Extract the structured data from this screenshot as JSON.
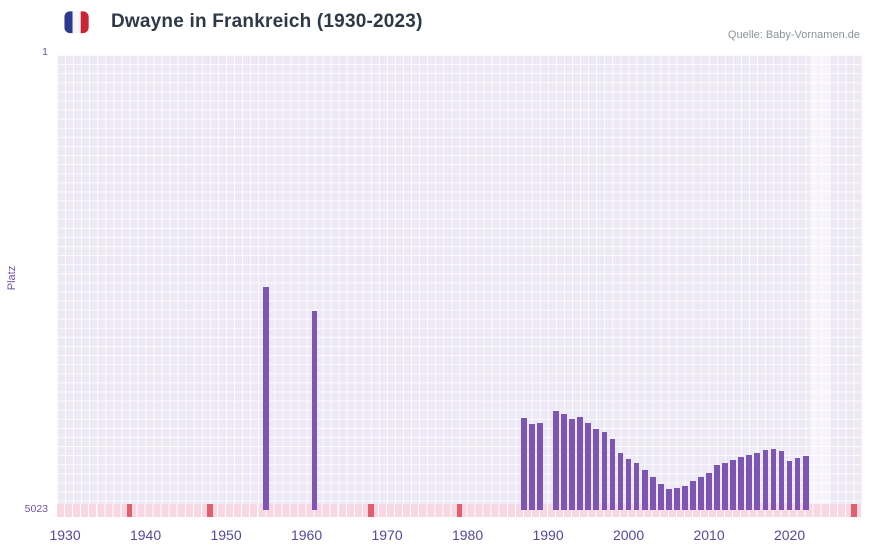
{
  "header": {
    "title": "Dwayne in Frankreich (1930-2023)",
    "source": "Quelle: Baby-Vornamen.de",
    "flag": {
      "icon": "france-flag-icon",
      "blue": "#2B3A8C",
      "white": "#F5F5F7",
      "red": "#CC2335"
    }
  },
  "chart_data": {
    "type": "bar",
    "title": "Dwayne in Frankreich (1930-2023)",
    "ylabel": "Platz",
    "xlabel": "",
    "y_axis": {
      "min": 1,
      "max": 5023,
      "inverted": true,
      "tick_labels": [
        "1",
        "5023"
      ]
    },
    "x_domain": [
      1929,
      2029
    ],
    "x_ticks": [
      {
        "year": 1930,
        "label": "1930"
      },
      {
        "year": 1940,
        "label": "1940"
      },
      {
        "year": 1950,
        "label": "1950"
      },
      {
        "year": 1960,
        "label": "1960"
      },
      {
        "year": 1970,
        "label": "1970"
      },
      {
        "year": 1980,
        "label": "1980"
      },
      {
        "year": 1990,
        "label": "1990"
      },
      {
        "year": 2000,
        "label": "2000"
      },
      {
        "year": 2010,
        "label": "2010"
      },
      {
        "year": 2020,
        "label": "2020"
      }
    ],
    "grid": true,
    "legend_position": "none",
    "colors": {
      "bar": "#7D55B2",
      "plot_bg": "#ECE8F4",
      "grid_line": "rgba(255,255,255,0.8)",
      "axis_text": "#7253A8",
      "x_tick_text": "#514B9E",
      "strip": "#F8D7E2",
      "strip_accent": "#E0606E",
      "band": "rgba(255,255,255,0.5)"
    },
    "highlight_band": {
      "from": 2022.5,
      "to": 2025
    },
    "baseline_strip": {
      "accent_years": [
        1938,
        1948,
        1968,
        1979,
        2028
      ]
    },
    "series": [
      {
        "name": "Platz",
        "points": [
          [
            1955,
            2566
          ],
          [
            1961,
            2831
          ],
          [
            1987,
            4005
          ],
          [
            1988,
            4078
          ],
          [
            1989,
            4066
          ],
          [
            1991,
            3930
          ],
          [
            1992,
            3963
          ],
          [
            1993,
            4018
          ],
          [
            1994,
            3996
          ],
          [
            1995,
            4062
          ],
          [
            1996,
            4128
          ],
          [
            1997,
            4161
          ],
          [
            1998,
            4238
          ],
          [
            1999,
            4393
          ],
          [
            2000,
            4459
          ],
          [
            2001,
            4503
          ],
          [
            2002,
            4580
          ],
          [
            2003,
            4660
          ],
          [
            2004,
            4736
          ],
          [
            2005,
            4791
          ],
          [
            2006,
            4775
          ],
          [
            2007,
            4762
          ],
          [
            2008,
            4702
          ],
          [
            2009,
            4658
          ],
          [
            2010,
            4614
          ],
          [
            2011,
            4525
          ],
          [
            2012,
            4503
          ],
          [
            2013,
            4470
          ],
          [
            2014,
            4437
          ],
          [
            2015,
            4415
          ],
          [
            2016,
            4393
          ],
          [
            2017,
            4360
          ],
          [
            2018,
            4349
          ],
          [
            2019,
            4371
          ],
          [
            2020,
            4481
          ],
          [
            2021,
            4448
          ],
          [
            2022,
            4426
          ]
        ]
      }
    ]
  }
}
